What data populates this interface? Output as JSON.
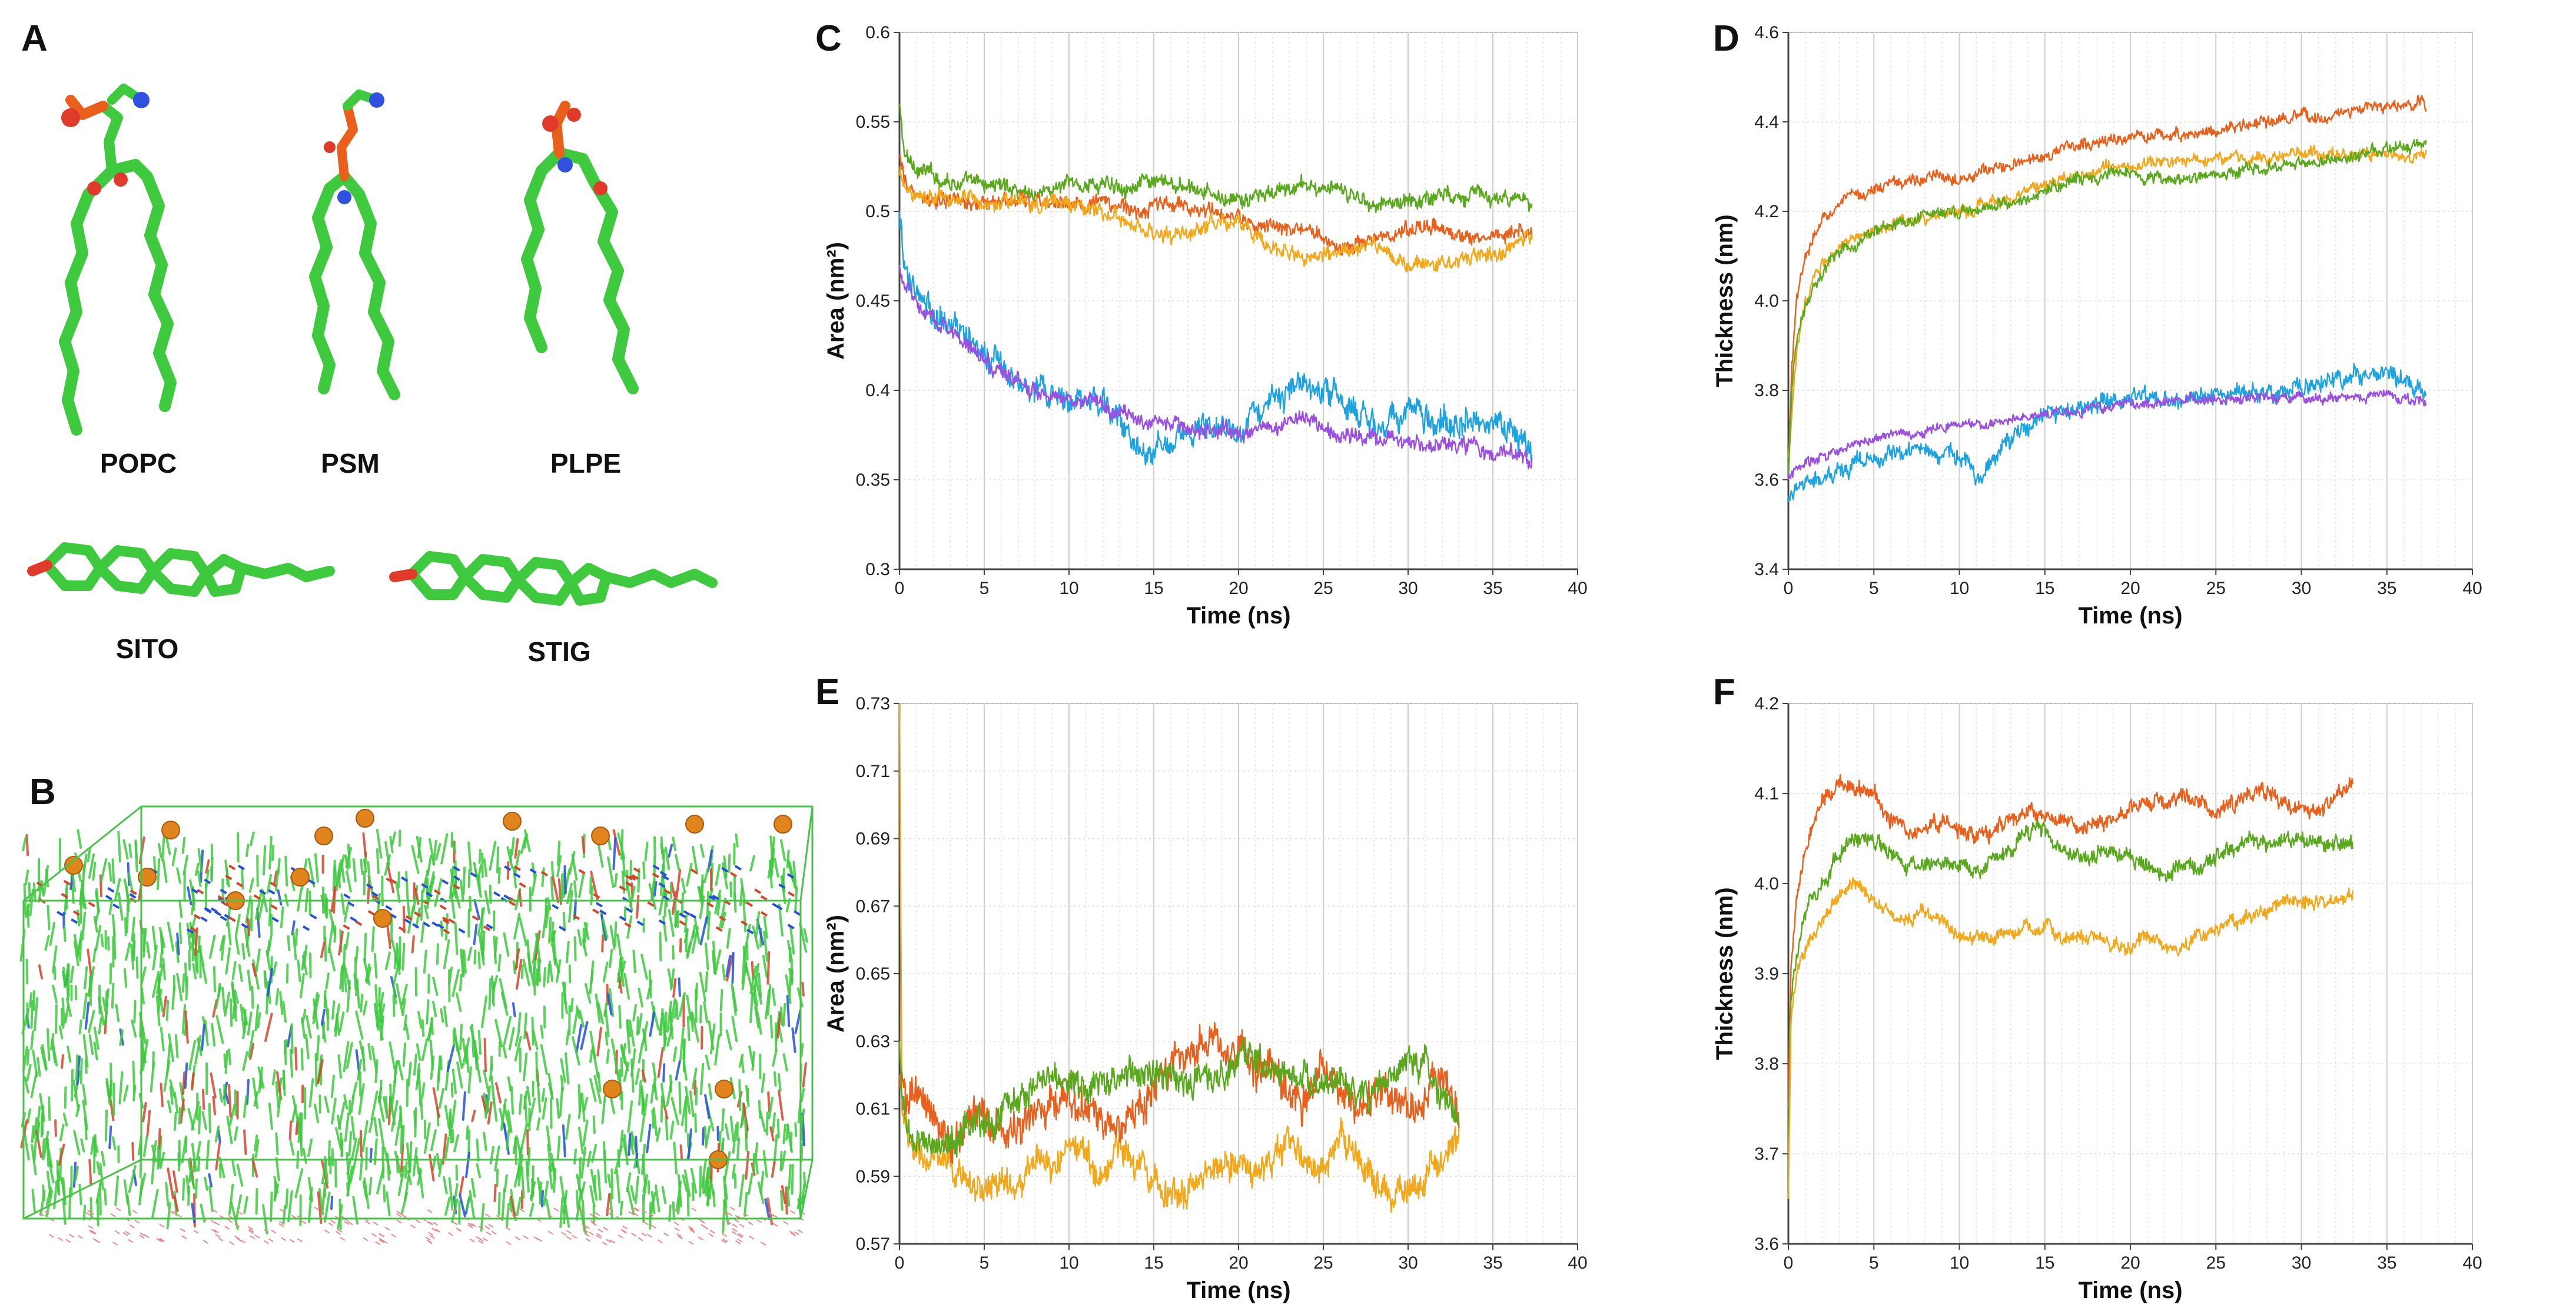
{
  "panels": {
    "A": "A",
    "B": "B",
    "C": "C",
    "D": "D",
    "E": "E",
    "F": "F"
  },
  "molecules": {
    "popc": "POPC",
    "psm": "PSM",
    "plpe": "PLPE",
    "sito": "SITO",
    "stig": "STIG"
  },
  "colors": {
    "green": "#5aa81e",
    "orange": "#e8601c",
    "gold": "#f2a81d",
    "blue": "#1fa3e0",
    "purple": "#9a4fe0",
    "lipid": "#3ec93e"
  },
  "chart_data": [
    {
      "id": "C",
      "type": "line",
      "xlabel": "Time (ns)",
      "ylabel": "Area (nm²)",
      "xlim": [
        0,
        40
      ],
      "ylim": [
        0.3,
        0.6
      ],
      "xticks": [
        0,
        5,
        10,
        15,
        20,
        25,
        30,
        35,
        40
      ],
      "yticks": [
        "0.3",
        "0.35",
        "0.4",
        "0.45",
        "0.5",
        "0.55",
        "0.6"
      ],
      "grid": true,
      "series": [
        {
          "name": "green",
          "color": "#5aa81e",
          "x": [
            0,
            0.3,
            1,
            2,
            4,
            6,
            8,
            10,
            12,
            14,
            16,
            18,
            20,
            22,
            24,
            26,
            28,
            30,
            32,
            34,
            36,
            37.3
          ],
          "y": [
            0.56,
            0.53,
            0.525,
            0.52,
            0.515,
            0.515,
            0.51,
            0.515,
            0.515,
            0.515,
            0.515,
            0.51,
            0.505,
            0.51,
            0.515,
            0.51,
            0.505,
            0.505,
            0.51,
            0.51,
            0.505,
            0.505
          ],
          "noise": 0.004
        },
        {
          "name": "orange",
          "color": "#e8601c",
          "x": [
            0,
            0.3,
            1,
            2,
            4,
            6,
            8,
            10,
            12,
            14,
            16,
            18,
            20,
            22,
            24,
            26,
            28,
            30,
            32,
            34,
            36,
            37.3
          ],
          "y": [
            0.53,
            0.515,
            0.51,
            0.505,
            0.505,
            0.505,
            0.505,
            0.505,
            0.505,
            0.5,
            0.505,
            0.5,
            0.495,
            0.49,
            0.49,
            0.48,
            0.485,
            0.49,
            0.49,
            0.485,
            0.49,
            0.49
          ],
          "noise": 0.004
        },
        {
          "name": "gold",
          "color": "#f2a81d",
          "x": [
            0,
            0.3,
            1,
            2,
            4,
            6,
            8,
            10,
            12,
            14,
            16,
            18,
            20,
            22,
            24,
            26,
            28,
            30,
            32,
            34,
            36,
            37.3
          ],
          "y": [
            0.52,
            0.515,
            0.51,
            0.51,
            0.505,
            0.505,
            0.505,
            0.505,
            0.5,
            0.49,
            0.485,
            0.49,
            0.495,
            0.48,
            0.475,
            0.475,
            0.48,
            0.47,
            0.47,
            0.475,
            0.48,
            0.485
          ],
          "noise": 0.004
        },
        {
          "name": "blue",
          "color": "#1fa3e0",
          "x": [
            0,
            0.3,
            1,
            2,
            4,
            6,
            8,
            10,
            12,
            13,
            14,
            15,
            16,
            18,
            20,
            22,
            24,
            26,
            28,
            30,
            32,
            34,
            36,
            37.3
          ],
          "y": [
            0.5,
            0.465,
            0.455,
            0.445,
            0.43,
            0.41,
            0.4,
            0.395,
            0.39,
            0.385,
            0.37,
            0.365,
            0.375,
            0.38,
            0.375,
            0.39,
            0.405,
            0.395,
            0.38,
            0.39,
            0.38,
            0.385,
            0.38,
            0.365
          ],
          "noise": 0.007
        },
        {
          "name": "purple",
          "color": "#9a4fe0",
          "x": [
            0,
            0.3,
            1,
            2,
            4,
            6,
            8,
            10,
            12,
            14,
            16,
            18,
            20,
            22,
            24,
            26,
            28,
            30,
            32,
            34,
            36,
            37.3
          ],
          "y": [
            0.47,
            0.455,
            0.45,
            0.44,
            0.425,
            0.41,
            0.4,
            0.395,
            0.39,
            0.385,
            0.38,
            0.38,
            0.375,
            0.38,
            0.385,
            0.375,
            0.375,
            0.37,
            0.37,
            0.368,
            0.365,
            0.36
          ],
          "noise": 0.004
        }
      ]
    },
    {
      "id": "D",
      "type": "line",
      "xlabel": "Time (ns)",
      "ylabel": "Thickness (nm)",
      "xlim": [
        0,
        40
      ],
      "ylim": [
        3.4,
        4.6
      ],
      "xticks": [
        0,
        5,
        10,
        15,
        20,
        25,
        30,
        35,
        40
      ],
      "yticks": [
        "3.4",
        "3.6",
        "3.8",
        "4.0",
        "4.2",
        "4.4",
        "4.6"
      ],
      "grid": true,
      "series": [
        {
          "name": "orange",
          "color": "#e8601c",
          "x": [
            0,
            0.2,
            0.5,
            1,
            2,
            3,
            5,
            7,
            10,
            13,
            16,
            19,
            22,
            25,
            28,
            31,
            34,
            37.3
          ],
          "y": [
            3.6,
            3.85,
            4.0,
            4.1,
            4.18,
            4.22,
            4.25,
            4.27,
            4.28,
            4.3,
            4.34,
            4.36,
            4.37,
            4.38,
            4.4,
            4.41,
            4.43,
            4.44
          ],
          "noise": 0.012
        },
        {
          "name": "gold",
          "color": "#f2a81d",
          "x": [
            0,
            0.2,
            0.5,
            1,
            2,
            3,
            5,
            7,
            10,
            13,
            16,
            19,
            22,
            25,
            28,
            31,
            34,
            37.3
          ],
          "y": [
            3.65,
            3.75,
            3.9,
            4.0,
            4.08,
            4.12,
            4.16,
            4.18,
            4.2,
            4.23,
            4.27,
            4.3,
            4.31,
            4.32,
            4.32,
            4.33,
            4.33,
            4.33
          ],
          "noise": 0.012
        },
        {
          "name": "green",
          "color": "#5aa81e",
          "x": [
            0,
            0.2,
            0.5,
            1,
            2,
            3,
            5,
            7,
            10,
            13,
            16,
            19,
            22,
            25,
            28,
            31,
            34,
            37.3
          ],
          "y": [
            3.6,
            3.8,
            3.92,
            4.0,
            4.07,
            4.11,
            4.15,
            4.18,
            4.2,
            4.22,
            4.26,
            4.28,
            4.27,
            4.28,
            4.3,
            4.31,
            4.33,
            4.35
          ],
          "noise": 0.012
        },
        {
          "name": "blue",
          "color": "#1fa3e0",
          "x": [
            0,
            0.5,
            1,
            2,
            4,
            6,
            8,
            10,
            11,
            12,
            13,
            15,
            17,
            20,
            23,
            26,
            29,
            32,
            35,
            37.3
          ],
          "y": [
            3.55,
            3.57,
            3.58,
            3.6,
            3.64,
            3.66,
            3.67,
            3.64,
            3.6,
            3.65,
            3.69,
            3.75,
            3.76,
            3.78,
            3.78,
            3.79,
            3.8,
            3.82,
            3.83,
            3.8
          ],
          "noise": 0.018
        },
        {
          "name": "purple",
          "color": "#9a4fe0",
          "x": [
            0,
            0.5,
            1,
            2,
            4,
            6,
            8,
            10,
            12,
            14,
            16,
            18,
            20,
            22,
            24,
            26,
            28,
            30,
            32,
            34,
            36,
            37.3
          ],
          "y": [
            3.6,
            3.62,
            3.63,
            3.65,
            3.68,
            3.7,
            3.71,
            3.72,
            3.73,
            3.74,
            3.75,
            3.76,
            3.77,
            3.77,
            3.78,
            3.78,
            3.78,
            3.78,
            3.78,
            3.79,
            3.78,
            3.77
          ],
          "noise": 0.01
        }
      ]
    },
    {
      "id": "E",
      "type": "line",
      "xlabel": "Time (ns)",
      "ylabel": "Area (nm²)",
      "xlim": [
        0,
        40
      ],
      "ylim": [
        0.57,
        0.73
      ],
      "xticks": [
        0,
        5,
        10,
        15,
        20,
        25,
        30,
        35,
        40
      ],
      "yticks": [
        "0.57",
        "0.59",
        "0.61",
        "0.63",
        "0.65",
        "0.67",
        "0.69",
        "0.71",
        "0.73"
      ],
      "grid": true,
      "series": [
        {
          "name": "gold",
          "color": "#f2a81d",
          "x": [
            0,
            0.15,
            0.5,
            1,
            2,
            3,
            4,
            5,
            6,
            7,
            8,
            9,
            10,
            11,
            12,
            13,
            14,
            15,
            16,
            17,
            18,
            19,
            20,
            21,
            22,
            23,
            24,
            25,
            26,
            27,
            28,
            29,
            30,
            31,
            32,
            33
          ],
          "y": [
            0.73,
            0.61,
            0.6,
            0.595,
            0.595,
            0.59,
            0.59,
            0.585,
            0.59,
            0.585,
            0.595,
            0.59,
            0.6,
            0.595,
            0.59,
            0.6,
            0.595,
            0.59,
            0.585,
            0.585,
            0.59,
            0.595,
            0.595,
            0.59,
            0.595,
            0.6,
            0.595,
            0.59,
            0.6,
            0.595,
            0.59,
            0.585,
            0.585,
            0.59,
            0.595,
            0.6
          ],
          "noise": 0.004
        },
        {
          "name": "orange",
          "color": "#e8601c",
          "x": [
            0,
            0.15,
            0.5,
            1,
            2,
            3,
            4,
            5,
            6,
            7,
            8,
            9,
            10,
            11,
            12,
            13,
            14,
            15,
            16,
            17,
            18,
            19,
            20,
            21,
            22,
            23,
            24,
            25,
            26,
            27,
            28,
            29,
            30,
            31,
            32,
            33
          ],
          "y": [
            0.62,
            0.615,
            0.615,
            0.615,
            0.605,
            0.6,
            0.605,
            0.61,
            0.6,
            0.605,
            0.61,
            0.615,
            0.615,
            0.61,
            0.605,
            0.605,
            0.61,
            0.615,
            0.625,
            0.625,
            0.63,
            0.63,
            0.625,
            0.62,
            0.62,
            0.615,
            0.615,
            0.62,
            0.615,
            0.61,
            0.615,
            0.615,
            0.61,
            0.615,
            0.62,
            0.61
          ],
          "noise": 0.005
        },
        {
          "name": "green",
          "color": "#5aa81e",
          "x": [
            0,
            0.15,
            0.5,
            1,
            2,
            3,
            4,
            5,
            6,
            7,
            8,
            9,
            10,
            11,
            12,
            13,
            14,
            15,
            16,
            17,
            18,
            19,
            20,
            21,
            22,
            23,
            24,
            25,
            26,
            27,
            28,
            29,
            30,
            31,
            32,
            33
          ],
          "y": [
            0.63,
            0.61,
            0.605,
            0.6,
            0.6,
            0.6,
            0.605,
            0.605,
            0.61,
            0.615,
            0.615,
            0.62,
            0.62,
            0.615,
            0.615,
            0.62,
            0.62,
            0.62,
            0.62,
            0.615,
            0.62,
            0.62,
            0.625,
            0.625,
            0.62,
            0.62,
            0.62,
            0.615,
            0.62,
            0.615,
            0.615,
            0.62,
            0.625,
            0.625,
            0.615,
            0.61
          ],
          "noise": 0.004
        }
      ]
    },
    {
      "id": "F",
      "type": "line",
      "xlabel": "Time (ns)",
      "ylabel": "Thickness (nm)",
      "xlim": [
        0,
        40
      ],
      "ylim": [
        3.6,
        4.2
      ],
      "xticks": [
        0,
        5,
        10,
        15,
        20,
        25,
        30,
        35,
        40
      ],
      "yticks": [
        "3.6",
        "3.7",
        "3.8",
        "3.9",
        "4.0",
        "4.1",
        "4.2"
      ],
      "grid": true,
      "series": [
        {
          "name": "orange",
          "color": "#e8601c",
          "x": [
            0,
            0.15,
            0.5,
            1,
            2,
            3,
            4,
            5,
            6,
            7,
            8,
            9,
            10,
            11,
            12,
            13,
            14,
            15,
            16,
            17,
            18,
            19,
            20,
            21,
            22,
            23,
            24,
            25,
            26,
            27,
            28,
            29,
            30,
            31,
            32,
            33
          ],
          "y": [
            3.75,
            3.9,
            3.98,
            4.04,
            4.09,
            4.11,
            4.11,
            4.1,
            4.07,
            4.06,
            4.06,
            4.07,
            4.06,
            4.05,
            4.06,
            4.07,
            4.08,
            4.07,
            4.07,
            4.06,
            4.07,
            4.07,
            4.08,
            4.09,
            4.09,
            4.1,
            4.09,
            4.08,
            4.09,
            4.1,
            4.1,
            4.09,
            4.09,
            4.08,
            4.1,
            4.11
          ],
          "noise": 0.008
        },
        {
          "name": "green",
          "color": "#5aa81e",
          "x": [
            0,
            0.15,
            0.5,
            1,
            2,
            3,
            4,
            5,
            6,
            7,
            8,
            9,
            10,
            11,
            12,
            13,
            14,
            15,
            16,
            17,
            18,
            19,
            20,
            21,
            22,
            23,
            24,
            25,
            26,
            27,
            28,
            29,
            30,
            31,
            32,
            33
          ],
          "y": [
            3.7,
            3.88,
            3.93,
            3.97,
            4.0,
            4.03,
            4.05,
            4.05,
            4.03,
            4.02,
            4.02,
            4.03,
            4.02,
            4.01,
            4.03,
            4.04,
            4.06,
            4.06,
            4.04,
            4.03,
            4.03,
            4.04,
            4.03,
            4.02,
            4.01,
            4.02,
            4.02,
            4.03,
            4.04,
            4.05,
            4.04,
            4.05,
            4.05,
            4.04,
            4.05,
            4.04
          ],
          "noise": 0.008
        },
        {
          "name": "gold",
          "color": "#f2a81d",
          "x": [
            0,
            0.15,
            0.5,
            1,
            2,
            3,
            4,
            5,
            6,
            7,
            8,
            9,
            10,
            11,
            12,
            13,
            14,
            15,
            16,
            17,
            18,
            19,
            20,
            21,
            22,
            23,
            24,
            25,
            26,
            27,
            28,
            29,
            30,
            31,
            32,
            33
          ],
          "y": [
            3.65,
            3.85,
            3.9,
            3.93,
            3.96,
            3.99,
            4.0,
            3.98,
            3.97,
            3.96,
            3.97,
            3.96,
            3.94,
            3.94,
            3.94,
            3.95,
            3.95,
            3.95,
            3.94,
            3.94,
            3.94,
            3.93,
            3.93,
            3.94,
            3.93,
            3.93,
            3.94,
            3.95,
            3.96,
            3.96,
            3.97,
            3.98,
            3.98,
            3.98,
            3.98,
            3.99
          ],
          "noise": 0.007
        }
      ]
    }
  ]
}
